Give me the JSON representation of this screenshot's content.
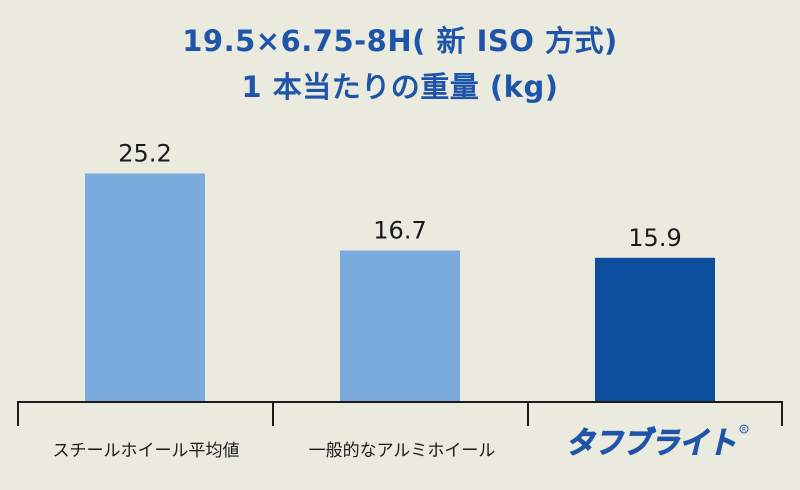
{
  "chart_data": {
    "type": "bar",
    "title": "19.5×6.75-8H( 新 ISO 方式)",
    "subtitle": "1 本当たりの重量 (kg)",
    "categories": [
      "スチールホイール平均値",
      "一般的なアルミホイール",
      "タフブライト"
    ],
    "values": [
      25.2,
      16.7,
      15.9
    ],
    "value_labels": [
      "25.2",
      "16.7",
      "15.9"
    ],
    "bar_colors": [
      "#7aaadb",
      "#7aaadb",
      "#0d4f9e"
    ],
    "ylim": [
      0,
      30
    ],
    "grid": false,
    "legend": "none"
  },
  "brand_logo": {
    "text": "タフブライト",
    "color": "#1f55a8"
  }
}
